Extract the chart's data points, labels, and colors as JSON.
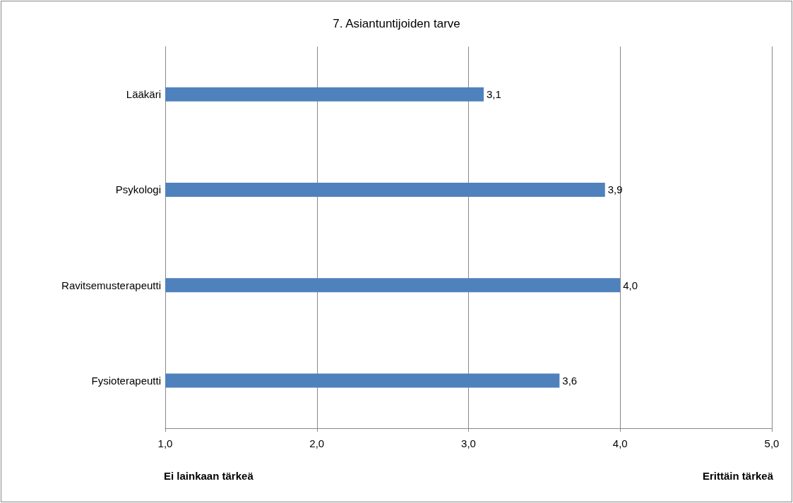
{
  "chart_data": {
    "type": "bar",
    "orientation": "horizontal",
    "title": "7. Asiantuntijoiden tarve",
    "categories": [
      "Lääkäri",
      "Psykologi",
      "Ravitsemusterapeutti",
      "Fysioterapeutti"
    ],
    "values": [
      3.1,
      3.9,
      4.0,
      3.6
    ],
    "value_labels": [
      "3,1",
      "3,9",
      "4,0",
      "3,6"
    ],
    "color": "#4f81bd",
    "xlim": [
      1,
      5
    ],
    "xticks": [
      {
        "value": 1,
        "label": "1,0"
      },
      {
        "value": 2,
        "label": "2,0"
      },
      {
        "value": 3,
        "label": "3,0"
      },
      {
        "value": 4,
        "label": "4,0"
      },
      {
        "value": 5,
        "label": "5,0"
      }
    ],
    "grid": "x",
    "annotations": [
      "Ei lainkaan tärkeä",
      "Erittäin tärkeä"
    ]
  }
}
